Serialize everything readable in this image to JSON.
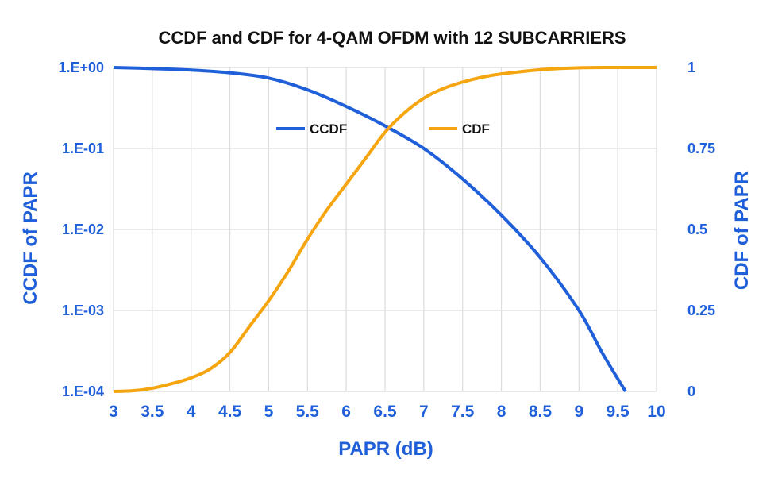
{
  "chart_data": {
    "type": "line",
    "title": "CCDF and CDF for 4-QAM OFDM with 12 SUBCARRIERS",
    "xlabel": "PAPR (dB)",
    "ylabel": "CCDF of PAPR",
    "y2label": "CDF of PAPR",
    "xlim": [
      3,
      10
    ],
    "x_ticks": [
      "3",
      "3.5",
      "4",
      "4.5",
      "5",
      "5.5",
      "6",
      "6.5",
      "7",
      "7.5",
      "8",
      "8.5",
      "9",
      "9.5",
      "10"
    ],
    "y_scale": "log",
    "ylim": [
      0.0001,
      1
    ],
    "y_ticks": [
      "1.E+00",
      "1.E-01",
      "1.E-02",
      "1.E-03",
      "1.E-04"
    ],
    "y2lim": [
      0,
      1
    ],
    "y2_ticks": [
      "1",
      "0.75",
      "0.5",
      "0.25",
      "0"
    ],
    "grid": true,
    "legend": "top-center",
    "series": [
      {
        "name": "CCDF",
        "axis": "left",
        "color": "#1f5fd9",
        "x": [
          3,
          3.5,
          4,
          4.5,
          5,
          5.5,
          6,
          6.5,
          7,
          7.5,
          8,
          8.5,
          9,
          9.3,
          9.6
        ],
        "y": [
          1.0,
          0.97,
          0.93,
          0.86,
          0.74,
          0.53,
          0.33,
          0.19,
          0.1,
          0.042,
          0.015,
          0.0045,
          0.001,
          0.0003,
          0.0001
        ]
      },
      {
        "name": "CDF",
        "axis": "right",
        "color": "#f5a50f",
        "x": [
          3,
          3.25,
          3.5,
          3.75,
          4,
          4.25,
          4.5,
          4.75,
          5,
          5.25,
          5.5,
          5.75,
          6,
          6.25,
          6.5,
          6.75,
          7,
          7.25,
          7.5,
          7.75,
          8,
          8.5,
          9,
          9.5,
          10
        ],
        "y": [
          0,
          0.002,
          0.01,
          0.024,
          0.042,
          0.07,
          0.12,
          0.2,
          0.28,
          0.37,
          0.47,
          0.56,
          0.64,
          0.72,
          0.8,
          0.86,
          0.905,
          0.935,
          0.955,
          0.97,
          0.98,
          0.993,
          0.999,
          1.0,
          1.0
        ]
      }
    ]
  }
}
